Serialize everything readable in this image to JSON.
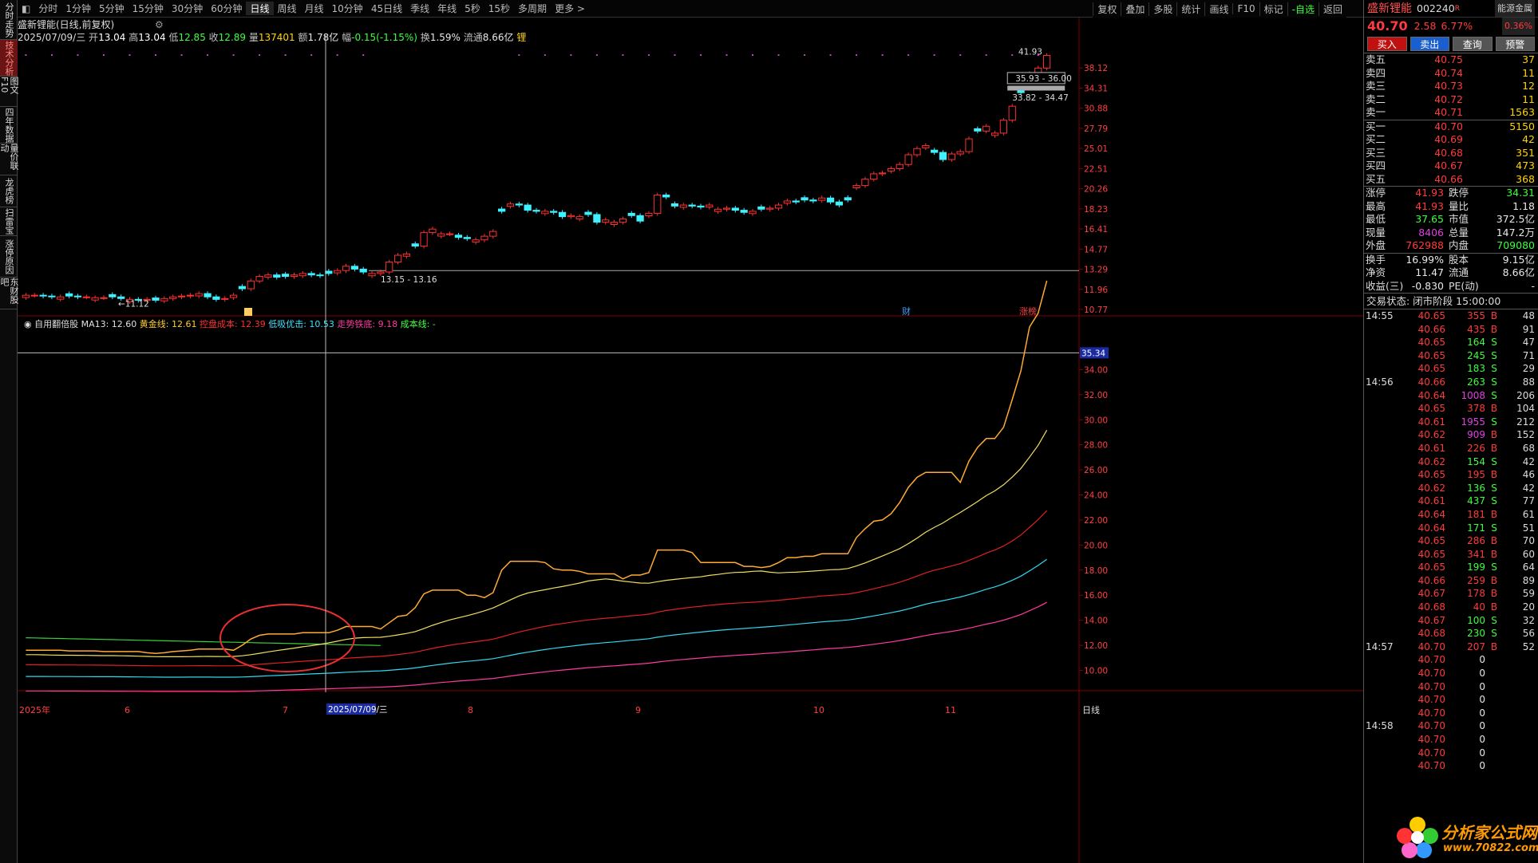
{
  "leftbar": [
    "分时走势",
    "技术分析",
    "图文F10",
    "四年数据",
    "量价联动",
    "龙虎榜",
    "扫雷宝",
    "涨停原因",
    "东财股吧"
  ],
  "topbar": {
    "periods": [
      "分时",
      "1分钟",
      "5分钟",
      "15分钟",
      "30分钟",
      "60分钟",
      "日线",
      "周线",
      "月线",
      "10分钟",
      "45日线",
      "季线",
      "年线",
      "5秒",
      "15秒",
      "多周期",
      "更多 >"
    ],
    "selected": "日线",
    "tools": [
      "复权",
      "叠加",
      "多股",
      "统计",
      "画线",
      "F10",
      "标记",
      "-自选",
      "返回"
    ]
  },
  "chart_header": {
    "title": "盛新锂能(日线,前复权)",
    "date": "2025/07/09/三",
    "open_label": "开",
    "open": "13.04",
    "high_label": "高",
    "high": "13.04",
    "low_label": "低",
    "low": "12.85",
    "close_label": "收",
    "close": "12.89",
    "vol_label": "量",
    "vol": "137401",
    "amt_label": "额",
    "amt": "1.78亿",
    "chg_label": "幅",
    "chg": "-0.15(-1.15%)",
    "turnover_label": "换",
    "turnover": "1.59%",
    "float_label": "流通",
    "float": "8.66亿",
    "badge": "锂"
  },
  "price_axis": [
    "38.12",
    "34.31",
    "30.88",
    "27.79",
    "25.01",
    "22.51",
    "20.26",
    "18.23",
    "16.41",
    "14.77",
    "13.29",
    "11.96",
    "10.77"
  ],
  "price_annotations": {
    "peak": "41.93",
    "zone1": "35.93 - 36.00",
    "zone2": "33.82 - 34.47",
    "zone3": "13.15 - 13.16",
    "low": "11.12",
    "tag_cai": "财",
    "tag_zt": "涨榜",
    "marker_box": "◎"
  },
  "indicator": {
    "name": "自用翻倍股",
    "items": [
      {
        "label": "MA13: 12.60",
        "color": "#e0e0e0"
      },
      {
        "label": "黄金线: 12.61",
        "color": "#ffcc33"
      },
      {
        "label": "控盘成本: 12.39",
        "color": "#ff3030"
      },
      {
        "label": "低吸优击: 10.53",
        "color": "#40e0ff"
      },
      {
        "label": "走势铁底: 9.18",
        "color": "#ff3aa0"
      },
      {
        "label": "成本线: -",
        "color": "#40ff40"
      }
    ],
    "axis": [
      "34.00",
      "32.00",
      "30.00",
      "28.00",
      "26.00",
      "24.00",
      "22.00",
      "20.00",
      "18.00",
      "16.00",
      "14.00",
      "12.00",
      "10.00"
    ],
    "current": "35.34"
  },
  "time_axis": {
    "labels": [
      "2025年",
      "6",
      "7",
      "8",
      "9",
      "10",
      "11"
    ],
    "crosshair_date": "2025/07/09/三",
    "period": "日线"
  },
  "quote": {
    "name": "盛新锂能",
    "code": "002240",
    "suffix": "R",
    "badge": "能源金属",
    "price": "40.70",
    "change": "2.58",
    "pct": "6.77%",
    "small_pct": "0.36%",
    "buttons": [
      "买入",
      "卖出",
      "查询",
      "预警"
    ]
  },
  "asks": [
    {
      "label": "卖五",
      "price": "40.75",
      "vol": "37"
    },
    {
      "label": "卖四",
      "price": "40.74",
      "vol": "11"
    },
    {
      "label": "卖三",
      "price": "40.73",
      "vol": "12"
    },
    {
      "label": "卖二",
      "price": "40.72",
      "vol": "11"
    },
    {
      "label": "卖一",
      "price": "40.71",
      "vol": "1563"
    }
  ],
  "bids": [
    {
      "label": "买一",
      "price": "40.70",
      "vol": "5150"
    },
    {
      "label": "买二",
      "price": "40.69",
      "vol": "42"
    },
    {
      "label": "买三",
      "price": "40.68",
      "vol": "351"
    },
    {
      "label": "买四",
      "price": "40.67",
      "vol": "473"
    },
    {
      "label": "买五",
      "price": "40.66",
      "vol": "368"
    }
  ],
  "stats": [
    [
      "涨停",
      "41.93",
      "跌停",
      "34.31"
    ],
    [
      "最高",
      "41.93",
      "量比",
      "1.18"
    ],
    [
      "最低",
      "37.65",
      "市值",
      "372.5亿"
    ],
    [
      "现量",
      "8406",
      "总量",
      "147.2万"
    ],
    [
      "外盘",
      "762988",
      "内盘",
      "709080"
    ]
  ],
  "stats2": [
    [
      "换手",
      "16.99%",
      "股本",
      "9.15亿"
    ],
    [
      "净资",
      "11.47",
      "流通",
      "8.66亿"
    ],
    [
      "收益(三)",
      "-0.830",
      "PE(动)",
      "-"
    ]
  ],
  "status": "交易状态: 闭市阶段 15:00:00",
  "ticks": [
    {
      "t": "14:55",
      "p": "40.65",
      "v": "355",
      "d": "B",
      "n": "48"
    },
    {
      "t": "",
      "p": "40.66",
      "v": "435",
      "d": "B",
      "n": "91"
    },
    {
      "t": "",
      "p": "40.65",
      "v": "164",
      "d": "S",
      "n": "47"
    },
    {
      "t": "",
      "p": "40.65",
      "v": "245",
      "d": "S",
      "n": "71"
    },
    {
      "t": "",
      "p": "40.65",
      "v": "183",
      "d": "S",
      "n": "29"
    },
    {
      "t": "14:56",
      "p": "40.66",
      "v": "263",
      "d": "S",
      "n": "88"
    },
    {
      "t": "",
      "p": "40.64",
      "v": "1008",
      "d": "S",
      "n": "206"
    },
    {
      "t": "",
      "p": "40.65",
      "v": "378",
      "d": "B",
      "n": "104"
    },
    {
      "t": "",
      "p": "40.61",
      "v": "1955",
      "d": "S",
      "n": "212"
    },
    {
      "t": "",
      "p": "40.62",
      "v": "909",
      "d": "B",
      "n": "152"
    },
    {
      "t": "",
      "p": "40.61",
      "v": "226",
      "d": "B",
      "n": "68"
    },
    {
      "t": "",
      "p": "40.62",
      "v": "154",
      "d": "S",
      "n": "42"
    },
    {
      "t": "",
      "p": "40.65",
      "v": "195",
      "d": "B",
      "n": "46"
    },
    {
      "t": "",
      "p": "40.62",
      "v": "136",
      "d": "S",
      "n": "42"
    },
    {
      "t": "",
      "p": "40.61",
      "v": "437",
      "d": "S",
      "n": "77"
    },
    {
      "t": "",
      "p": "40.64",
      "v": "181",
      "d": "B",
      "n": "61"
    },
    {
      "t": "",
      "p": "40.64",
      "v": "171",
      "d": "S",
      "n": "51"
    },
    {
      "t": "",
      "p": "40.65",
      "v": "286",
      "d": "B",
      "n": "70"
    },
    {
      "t": "",
      "p": "40.65",
      "v": "341",
      "d": "B",
      "n": "60"
    },
    {
      "t": "",
      "p": "40.65",
      "v": "199",
      "d": "S",
      "n": "64"
    },
    {
      "t": "",
      "p": "40.66",
      "v": "259",
      "d": "B",
      "n": "89"
    },
    {
      "t": "",
      "p": "40.67",
      "v": "178",
      "d": "B",
      "n": "59"
    },
    {
      "t": "",
      "p": "40.68",
      "v": "40",
      "d": "B",
      "n": "20"
    },
    {
      "t": "",
      "p": "40.67",
      "v": "100",
      "d": "S",
      "n": "32"
    },
    {
      "t": "",
      "p": "40.68",
      "v": "230",
      "d": "S",
      "n": "56"
    },
    {
      "t": "14:57",
      "p": "40.70",
      "v": "207",
      "d": "B",
      "n": "52"
    },
    {
      "t": "",
      "p": "40.70",
      "v": "0",
      "d": "",
      "n": ""
    },
    {
      "t": "",
      "p": "40.70",
      "v": "0",
      "d": "",
      "n": ""
    },
    {
      "t": "",
      "p": "40.70",
      "v": "0",
      "d": "",
      "n": ""
    },
    {
      "t": "",
      "p": "40.70",
      "v": "0",
      "d": "",
      "n": ""
    },
    {
      "t": "",
      "p": "40.70",
      "v": "0",
      "d": "",
      "n": ""
    },
    {
      "t": "14:58",
      "p": "40.70",
      "v": "0",
      "d": "",
      "n": ""
    },
    {
      "t": "",
      "p": "40.70",
      "v": "0",
      "d": "",
      "n": ""
    },
    {
      "t": "",
      "p": "40.70",
      "v": "0",
      "d": "",
      "n": ""
    },
    {
      "t": "",
      "p": "40.70",
      "v": "0",
      "d": "",
      "n": ""
    }
  ],
  "watermark": {
    "title": "分析家公式网",
    "url": "www.70822.com"
  },
  "chart_data": {
    "type": "candlestick",
    "series": [
      {
        "name": "MA13",
        "color": "#e0e0e0"
      },
      {
        "name": "黄金线",
        "color": "#ffcc33"
      },
      {
        "name": "控盘成本",
        "color": "#ff3030"
      },
      {
        "name": "低吸优击",
        "color": "#40e0ff"
      },
      {
        "name": "走势铁底",
        "color": "#ff3aa0"
      },
      {
        "name": "成本线",
        "color": "#40ff40"
      }
    ],
    "price_range": [
      10.5,
      42
    ],
    "indicator_range": [
      8.5,
      36
    ],
    "closes": [
      11.6,
      11.6,
      11.55,
      11.5,
      11.5,
      11.55,
      11.5,
      11.5,
      11.45,
      11.45,
      11.5,
      11.4,
      11.35,
      11.3,
      11.35,
      11.3,
      11.4,
      11.5,
      11.55,
      11.6,
      11.7,
      11.5,
      11.35,
      11.4,
      11.6,
      12.0,
      12.5,
      12.8,
      12.9,
      12.75,
      12.8,
      12.9,
      13.0,
      12.9,
      12.85,
      13.0,
      13.2,
      13.5,
      13.3,
      13.1,
      13.0,
      13.1,
      13.8,
      14.3,
      14.4,
      15.0,
      16.1,
      16.4,
      16.0,
      16.0,
      15.7,
      15.6,
      15.5,
      15.8,
      16.2,
      18.0,
      18.7,
      18.6,
      18.1,
      18.0,
      18.0,
      17.9,
      17.5,
      17.6,
      17.5,
      17.7,
      17.0,
      17.2,
      17.0,
      17.3,
      17.6,
      17.1,
      17.8,
      19.6,
      19.4,
      18.5,
      18.6,
      18.5,
      18.4,
      18.6,
      18.2,
      18.3,
      18.1,
      17.9,
      18.0,
      18.2,
      18.3,
      18.6,
      19.0,
      18.9,
      19.1,
      19.0,
      19.3,
      18.9,
      18.6,
      19.1,
      20.6,
      21.3,
      21.9,
      22.0,
      22.5,
      23.0,
      24.2,
      25.0,
      25.4,
      24.5,
      23.6,
      24.3,
      24.6,
      26.3,
      27.4,
      28.1,
      27.1,
      29.0,
      31.2,
      33.5,
      37.0,
      38.1,
      40.7
    ]
  }
}
